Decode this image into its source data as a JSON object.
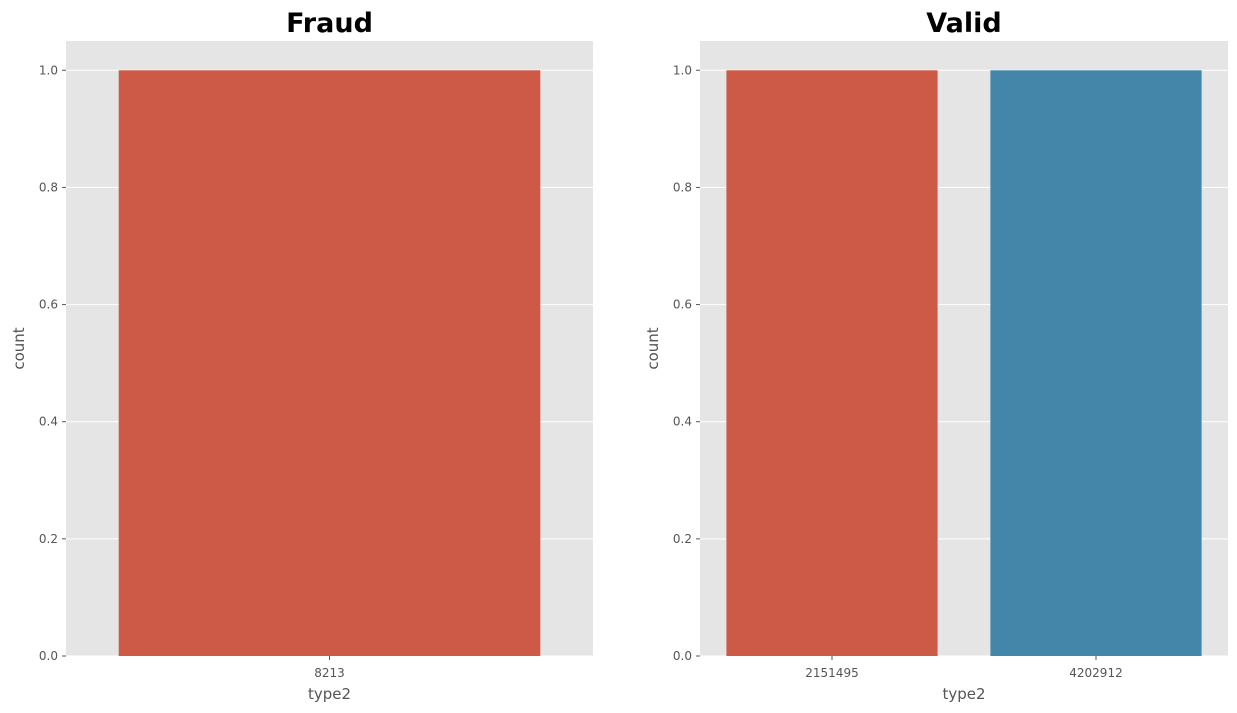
{
  "chart_data": [
    {
      "type": "bar",
      "title": "Fraud",
      "xlabel": "type2",
      "ylabel": "count",
      "categories": [
        "8213"
      ],
      "values": [
        1
      ],
      "bar_colors": [
        "#cd5a47"
      ],
      "ylim": [
        0,
        1.05
      ],
      "yticks": [
        "0.0",
        "0.2",
        "0.4",
        "0.6",
        "0.8",
        "1.0"
      ],
      "grid": true,
      "background": "#e5e5e5"
    },
    {
      "type": "bar",
      "title": "Valid",
      "xlabel": "type2",
      "ylabel": "count",
      "categories": [
        "2151495",
        "4202912"
      ],
      "values": [
        1,
        1
      ],
      "bar_colors": [
        "#cd5a47",
        "#4485aa"
      ],
      "ylim": [
        0,
        1.05
      ],
      "yticks": [
        "0.0",
        "0.2",
        "0.4",
        "0.6",
        "0.8",
        "1.0"
      ],
      "grid": true,
      "background": "#e5e5e5"
    }
  ]
}
